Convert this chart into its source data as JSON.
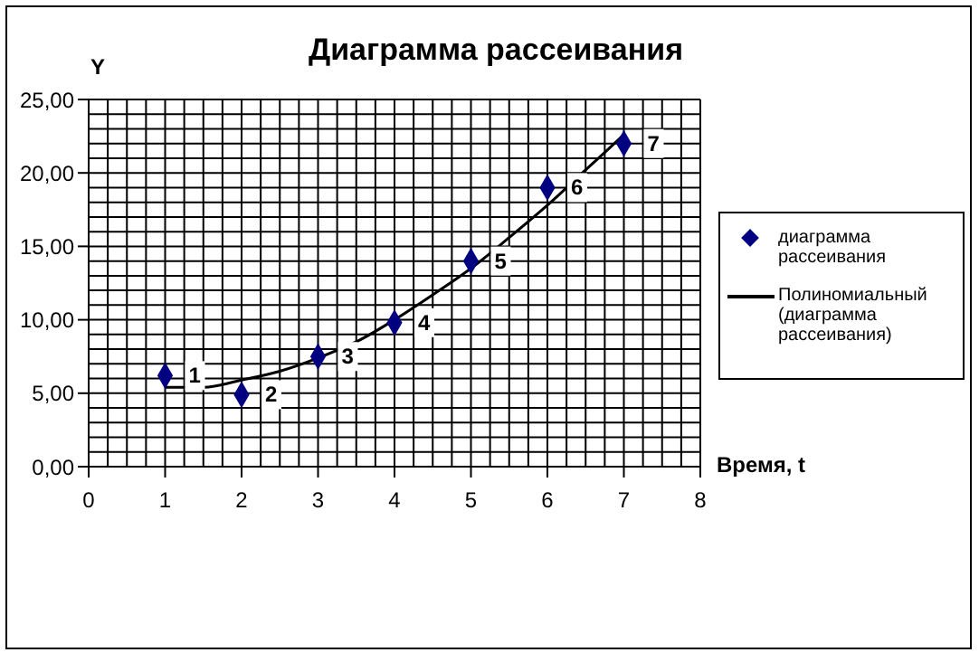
{
  "chart_data": {
    "type": "scatter",
    "title": "Диаграмма рассеивания",
    "xlabel": "Время, t",
    "ylabel": "Y",
    "series": [
      {
        "name": "диаграмма рассеивания",
        "color": "#000080",
        "marker": "diamond",
        "x": [
          1,
          2,
          3,
          4,
          5,
          6,
          7
        ],
        "values": [
          6.2,
          4.9,
          7.5,
          9.8,
          14,
          19,
          22
        ]
      },
      {
        "name": "Полиномиальный (диаграмма рассеивания)",
        "type": "line",
        "color": "#000000",
        "marker": "none",
        "line_style": "solid",
        "x": [
          1,
          1.5,
          2,
          2.5,
          3,
          3.5,
          4,
          4.5,
          5,
          5.5,
          6,
          6.5,
          7
        ],
        "values": [
          5.4,
          5.4,
          5.9,
          6.5,
          7.4,
          8.5,
          10,
          11.7,
          13.5,
          15.6,
          17.8,
          20.2,
          22.6
        ]
      }
    ],
    "annotations": [
      {
        "text": "1",
        "x": 1,
        "y": 6.2
      },
      {
        "text": "2",
        "x": 2,
        "y": 4.9
      },
      {
        "text": "3",
        "x": 3,
        "y": 7.5
      },
      {
        "text": "4",
        "x": 4,
        "y": 9.8
      },
      {
        "text": "5",
        "x": 5,
        "y": 14
      },
      {
        "text": "6",
        "x": 6,
        "y": 19
      },
      {
        "text": "7",
        "x": 7,
        "y": 22
      }
    ],
    "xlim": [
      0,
      8
    ],
    "xticks": [
      0,
      1,
      2,
      3,
      4,
      5,
      6,
      7,
      8
    ],
    "ylim": [
      0,
      25
    ],
    "yticks": [
      {
        "value": 0,
        "label": "0,00"
      },
      {
        "value": 5,
        "label": "5,00"
      },
      {
        "value": 10,
        "label": "10,00"
      },
      {
        "value": 15,
        "label": "15,00"
      },
      {
        "value": 20,
        "label": "20,00"
      },
      {
        "value": 25,
        "label": "25,00"
      }
    ],
    "grid": true,
    "legend": "right"
  }
}
